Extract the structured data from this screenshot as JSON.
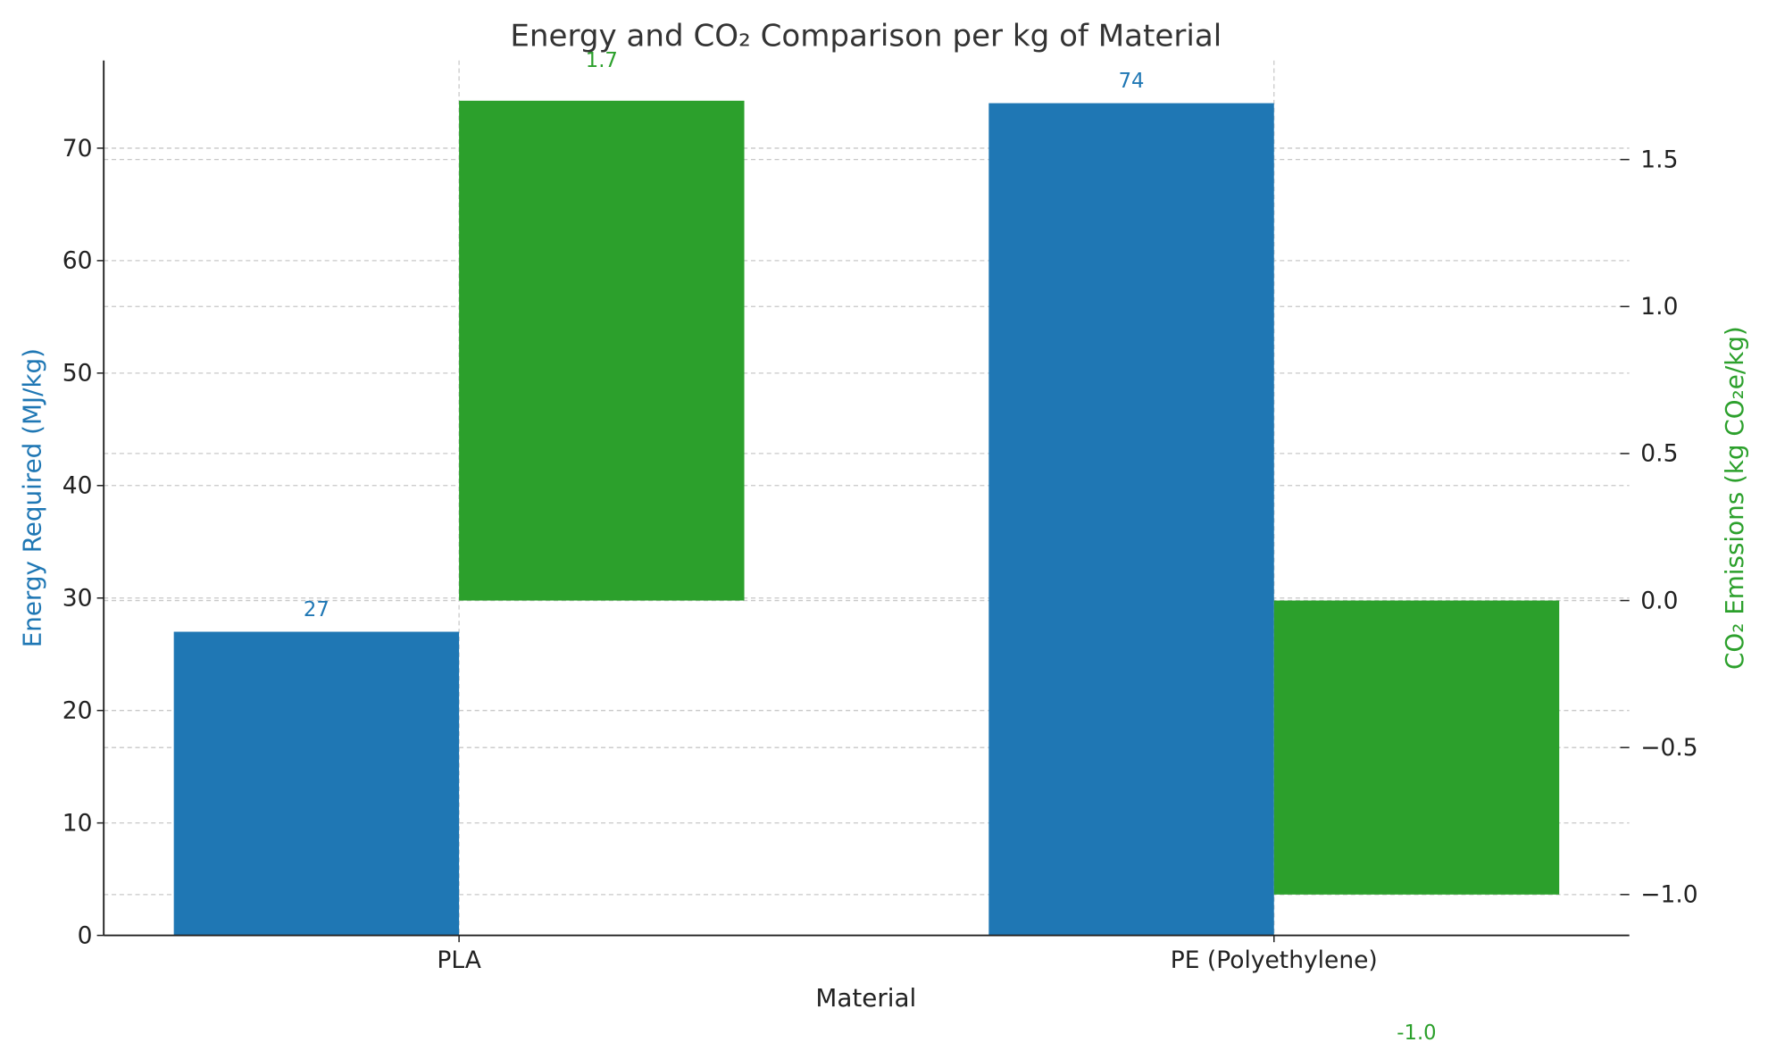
{
  "chart_data": {
    "type": "bar",
    "title": "Energy and CO₂ Comparison per kg of Material",
    "xlabel": "Material",
    "categories": [
      "PLA",
      "PE (Polyethylene)"
    ],
    "series": [
      {
        "name": "Energy Required (MJ/kg)",
        "axis": "left",
        "color": "#1f77b4",
        "values": [
          27,
          74
        ],
        "labels": [
          "27",
          "74"
        ]
      },
      {
        "name": "CO₂ Emissions (kg CO₂e/kg)",
        "axis": "right",
        "color": "#2ca02c",
        "values": [
          1.7,
          -1.0
        ],
        "labels": [
          "1.7",
          "-1.0"
        ]
      }
    ],
    "y_left": {
      "label": "Energy Required (MJ/kg)",
      "color": "#1f77b4",
      "range": [
        0,
        77.8
      ],
      "ticks": [
        0,
        10,
        20,
        30,
        40,
        50,
        60,
        70
      ],
      "tick_labels": [
        "0",
        "10",
        "20",
        "30",
        "40",
        "50",
        "60",
        "70"
      ]
    },
    "y_right": {
      "label": "CO₂ Emissions (kg CO₂e/kg)",
      "color": "#2ca02c",
      "range": [
        -1.139,
        1.837
      ],
      "ticks": [
        -1.0,
        -0.5,
        0.0,
        0.5,
        1.0,
        1.5
      ],
      "tick_labels": [
        "−1.0",
        "−0.5",
        "0.0",
        "0.5",
        "1.0",
        "1.5"
      ]
    },
    "grid": true,
    "bar_width": 0.35
  }
}
